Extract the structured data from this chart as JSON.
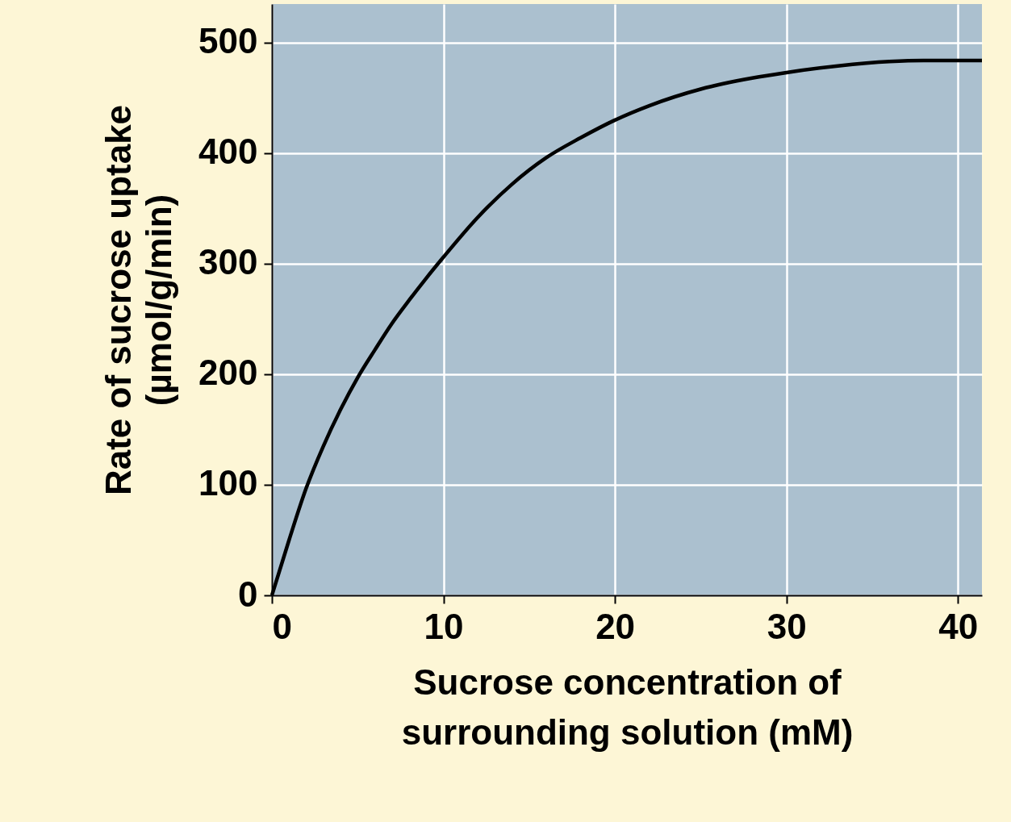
{
  "chart_data": {
    "type": "line",
    "xlabel": "Sucrose concentration of\nsurrounding solution (mM)",
    "ylabel": "Rate of sucrose uptake\n(µmol/g/min)",
    "x": [
      0,
      1,
      2,
      3,
      4,
      5,
      6,
      7,
      8,
      9,
      10,
      12,
      14,
      16,
      18,
      20,
      22,
      25,
      28,
      30,
      33,
      36,
      38,
      41.4
    ],
    "series": [
      {
        "color": "#000000",
        "values": [
          0,
          50,
          97,
          135,
          168,
          197,
          222,
          246,
          267,
          287,
          306,
          342,
          372,
          396,
          414,
          430,
          443,
          458,
          468,
          473,
          479,
          483,
          484,
          484
        ]
      }
    ],
    "xlim": [
      0,
      41.4
    ],
    "xticks": [
      0,
      10,
      20,
      30,
      40
    ],
    "ylim": [
      0,
      535
    ],
    "yticks": [
      0,
      100,
      200,
      300,
      400,
      500
    ],
    "grid": true,
    "marker": "none",
    "line_style": "solid"
  }
}
